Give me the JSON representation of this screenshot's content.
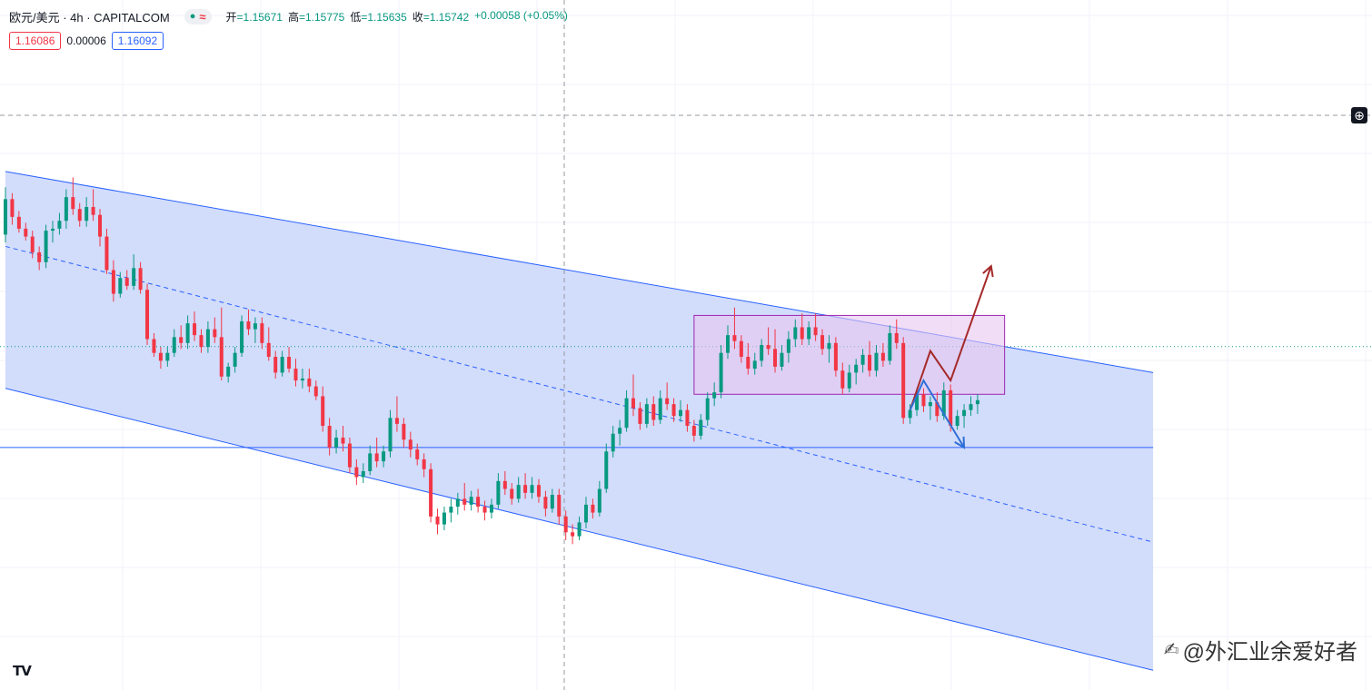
{
  "header": {
    "symbol_title": "欧元/美元 · 4h · CAPITALCOM",
    "status_wave": "≈",
    "ohlc": [
      {
        "label": "开",
        "value": "=1.15671"
      },
      {
        "label": "高",
        "value": "=1.15775"
      },
      {
        "label": "低",
        "value": "=1.15635"
      },
      {
        "label": "收",
        "value": "=1.15742"
      }
    ],
    "change": "+0.00058 (+0.05%)",
    "bid": "1.16086",
    "spread": "0.00006",
    "ask": "1.16092"
  },
  "watermark": "@外汇业余爱好者",
  "logo": "TV",
  "colors": {
    "up": "#089981",
    "down": "#f23645",
    "channel_fill": "#cdd8fb",
    "channel_line": "#2962ff",
    "range_box": "#e8c6f0",
    "range_border": "#9c27b0",
    "arrow_up": "#a52a2a",
    "arrow_down": "#2f6fd6"
  },
  "chart_data": {
    "type": "candlestick",
    "symbol": "欧元/美元",
    "timeframe": "4h",
    "current_close": 1.15742,
    "ylim": [
      1.14,
      1.175
    ],
    "grid": true,
    "channel": {
      "upper": {
        "start_index": 0,
        "start_price": 1.1663,
        "end_index": 170,
        "end_price": 1.1561
      },
      "lower": {
        "start_index": 0,
        "start_price": 1.1553,
        "end_index": 170,
        "end_price": 1.141
      },
      "mid": {
        "start_index": 0,
        "start_price": 1.1625,
        "end_index": 170,
        "end_price": 1.1475
      }
    },
    "support_level": 1.1523,
    "range_box": {
      "start_index": 102,
      "end_index": 148,
      "top": 1.159,
      "bottom": 1.155
    },
    "projections": [
      {
        "name": "bullish",
        "points": [
          [
            134,
            1.1542
          ],
          [
            137,
            1.1572
          ],
          [
            140,
            1.1557
          ],
          [
            146,
            1.1615
          ]
        ]
      },
      {
        "name": "bearish",
        "points": [
          [
            134,
            1.1542
          ],
          [
            136,
            1.1557
          ],
          [
            142,
            1.1523
          ]
        ]
      }
    ],
    "candles": [
      [
        1.1631,
        1.1655,
        1.1627,
        1.1649
      ],
      [
        1.1649,
        1.1652,
        1.1636,
        1.164
      ],
      [
        1.164,
        1.1643,
        1.1632,
        1.1634
      ],
      [
        1.1634,
        1.1637,
        1.1628,
        1.163
      ],
      [
        1.163,
        1.1633,
        1.1619,
        1.1622
      ],
      [
        1.1622,
        1.1625,
        1.1613,
        1.1617
      ],
      [
        1.1617,
        1.1636,
        1.1614,
        1.1633
      ],
      [
        1.1633,
        1.1638,
        1.1627,
        1.1634
      ],
      [
        1.1634,
        1.1642,
        1.1631,
        1.1638
      ],
      [
        1.1638,
        1.1654,
        1.1634,
        1.165
      ],
      [
        1.165,
        1.166,
        1.1641,
        1.1644
      ],
      [
        1.1644,
        1.1647,
        1.1635,
        1.1638
      ],
      [
        1.1638,
        1.165,
        1.1635,
        1.1645
      ],
      [
        1.1645,
        1.1654,
        1.1638,
        1.1641
      ],
      [
        1.1641,
        1.1644,
        1.1625,
        1.163
      ],
      [
        1.163,
        1.1634,
        1.1611,
        1.1613
      ],
      [
        1.1613,
        1.1618,
        1.1597,
        1.1601
      ],
      [
        1.1601,
        1.1612,
        1.1599,
        1.1609
      ],
      [
        1.1609,
        1.1613,
        1.1603,
        1.1605
      ],
      [
        1.1605,
        1.1621,
        1.1603,
        1.1614
      ],
      [
        1.1614,
        1.1617,
        1.1601,
        1.1603
      ],
      [
        1.1603,
        1.1606,
        1.1575,
        1.1578
      ],
      [
        1.1578,
        1.1581,
        1.1569,
        1.1571
      ],
      [
        1.1571,
        1.1574,
        1.1563,
        1.1567
      ],
      [
        1.1567,
        1.1574,
        1.1564,
        1.1571
      ],
      [
        1.1571,
        1.1583,
        1.1569,
        1.1579
      ],
      [
        1.1579,
        1.1585,
        1.1573,
        1.1576
      ],
      [
        1.1576,
        1.159,
        1.1573,
        1.1586
      ],
      [
        1.1586,
        1.1592,
        1.1577,
        1.158
      ],
      [
        1.158,
        1.1583,
        1.1571,
        1.1574
      ],
      [
        1.1574,
        1.1587,
        1.1571,
        1.1583
      ],
      [
        1.1583,
        1.1589,
        1.1576,
        1.1579
      ],
      [
        1.1579,
        1.1594,
        1.1557,
        1.1559
      ],
      [
        1.1559,
        1.1566,
        1.1556,
        1.1564
      ],
      [
        1.1564,
        1.1574,
        1.1561,
        1.1571
      ],
      [
        1.1571,
        1.159,
        1.1569,
        1.1587
      ],
      [
        1.1587,
        1.1593,
        1.158,
        1.1583
      ],
      [
        1.1583,
        1.1589,
        1.1576,
        1.1586
      ],
      [
        1.1586,
        1.1589,
        1.1573,
        1.1576
      ],
      [
        1.1576,
        1.1584,
        1.1567,
        1.1569
      ],
      [
        1.1569,
        1.1572,
        1.1558,
        1.1561
      ],
      [
        1.1561,
        1.1572,
        1.1559,
        1.1569
      ],
      [
        1.1569,
        1.1574,
        1.1561,
        1.1563
      ],
      [
        1.1563,
        1.1568,
        1.1554,
        1.1557
      ],
      [
        1.1557,
        1.1563,
        1.1553,
        1.1558
      ],
      [
        1.1558,
        1.1563,
        1.1551,
        1.1554
      ],
      [
        1.1554,
        1.1557,
        1.1547,
        1.1549
      ],
      [
        1.1549,
        1.1554,
        1.1531,
        1.1534
      ],
      [
        1.1534,
        1.1538,
        1.1519,
        1.1523
      ],
      [
        1.1523,
        1.1532,
        1.152,
        1.1528
      ],
      [
        1.1528,
        1.1534,
        1.1521,
        1.1525
      ],
      [
        1.1525,
        1.1528,
        1.151,
        1.1513
      ],
      [
        1.1513,
        1.1517,
        1.1504,
        1.1508
      ],
      [
        1.1508,
        1.1515,
        1.1505,
        1.1511
      ],
      [
        1.1511,
        1.1524,
        1.1509,
        1.152
      ],
      [
        1.152,
        1.1528,
        1.1513,
        1.1516
      ],
      [
        1.1516,
        1.1524,
        1.1513,
        1.1521
      ],
      [
        1.1521,
        1.1542,
        1.1518,
        1.1538
      ],
      [
        1.1538,
        1.1549,
        1.1531,
        1.1535
      ],
      [
        1.1535,
        1.1538,
        1.1523,
        1.1527
      ],
      [
        1.1527,
        1.1531,
        1.1518,
        1.1522
      ],
      [
        1.1522,
        1.1525,
        1.1514,
        1.1517
      ],
      [
        1.1517,
        1.152,
        1.1508,
        1.1512
      ],
      [
        1.1512,
        1.1515,
        1.1485,
        1.1488
      ],
      [
        1.1488,
        1.1492,
        1.1479,
        1.1484
      ],
      [
        1.1484,
        1.1493,
        1.1481,
        1.149
      ],
      [
        1.149,
        1.1497,
        1.1485,
        1.1493
      ],
      [
        1.1493,
        1.15,
        1.1489,
        1.1497
      ],
      [
        1.1497,
        1.1505,
        1.1491,
        1.1494
      ],
      [
        1.1494,
        1.1501,
        1.1491,
        1.1498
      ],
      [
        1.1498,
        1.1502,
        1.149,
        1.1493
      ],
      [
        1.1493,
        1.1496,
        1.1486,
        1.149
      ],
      [
        1.149,
        1.1497,
        1.1487,
        1.1494
      ],
      [
        1.1494,
        1.151,
        1.1492,
        1.1506
      ],
      [
        1.1506,
        1.1511,
        1.1499,
        1.1502
      ],
      [
        1.1502,
        1.1505,
        1.1494,
        1.1497
      ],
      [
        1.1497,
        1.1508,
        1.1495,
        1.1504
      ],
      [
        1.1504,
        1.151,
        1.1497,
        1.15
      ],
      [
        1.15,
        1.1508,
        1.1497,
        1.1504
      ],
      [
        1.1504,
        1.1507,
        1.1495,
        1.1498
      ],
      [
        1.1498,
        1.1501,
        1.1488,
        1.1492
      ],
      [
        1.1492,
        1.1502,
        1.149,
        1.1499
      ],
      [
        1.1499,
        1.1502,
        1.1484,
        1.1488
      ],
      [
        1.1488,
        1.1491,
        1.1476,
        1.148
      ],
      [
        1.148,
        1.1484,
        1.1474,
        1.1478
      ],
      [
        1.1478,
        1.1488,
        1.1476,
        1.1485
      ],
      [
        1.1485,
        1.1498,
        1.1482,
        1.1494
      ],
      [
        1.1494,
        1.1497,
        1.1487,
        1.149
      ],
      [
        1.149,
        1.1506,
        1.1488,
        1.1502
      ],
      [
        1.1502,
        1.1525,
        1.15,
        1.1521
      ],
      [
        1.1521,
        1.1534,
        1.1518,
        1.153
      ],
      [
        1.153,
        1.1537,
        1.1524,
        1.1533
      ],
      [
        1.1533,
        1.1552,
        1.1531,
        1.1548
      ],
      [
        1.1548,
        1.156,
        1.1539,
        1.1543
      ],
      [
        1.1543,
        1.1546,
        1.1532,
        1.1535
      ],
      [
        1.1535,
        1.1548,
        1.1533,
        1.1545
      ],
      [
        1.1545,
        1.1549,
        1.1534,
        1.1537
      ],
      [
        1.1537,
        1.1552,
        1.1535,
        1.1548
      ],
      [
        1.1548,
        1.1556,
        1.1542,
        1.1545
      ],
      [
        1.1545,
        1.1548,
        1.1536,
        1.1539
      ],
      [
        1.1539,
        1.1547,
        1.1536,
        1.1542
      ],
      [
        1.1542,
        1.1545,
        1.1531,
        1.1534
      ],
      [
        1.1534,
        1.1537,
        1.1526,
        1.1529
      ],
      [
        1.1529,
        1.154,
        1.1527,
        1.1537
      ],
      [
        1.1537,
        1.1551,
        1.1534,
        1.1548
      ],
      [
        1.1548,
        1.1556,
        1.1544,
        1.1551
      ],
      [
        1.1551,
        1.1575,
        1.1548,
        1.1571
      ],
      [
        1.1571,
        1.1585,
        1.1568,
        1.158
      ],
      [
        1.158,
        1.1594,
        1.1573,
        1.1577
      ],
      [
        1.1577,
        1.158,
        1.1566,
        1.1569
      ],
      [
        1.1569,
        1.1576,
        1.156,
        1.1563
      ],
      [
        1.1563,
        1.1571,
        1.156,
        1.1567
      ],
      [
        1.1567,
        1.1578,
        1.1564,
        1.1575
      ],
      [
        1.1575,
        1.1584,
        1.157,
        1.1573
      ],
      [
        1.1573,
        1.1583,
        1.1561,
        1.1564
      ],
      [
        1.1564,
        1.1575,
        1.1562,
        1.1571
      ],
      [
        1.1571,
        1.1582,
        1.1566,
        1.1578
      ],
      [
        1.1578,
        1.1588,
        1.1574,
        1.1584
      ],
      [
        1.1584,
        1.1591,
        1.1575,
        1.1578
      ],
      [
        1.1578,
        1.1587,
        1.1575,
        1.1584
      ],
      [
        1.1584,
        1.1591,
        1.1577,
        1.158
      ],
      [
        1.158,
        1.1583,
        1.157,
        1.1573
      ],
      [
        1.1573,
        1.158,
        1.1566,
        1.1576
      ],
      [
        1.1576,
        1.1579,
        1.1559,
        1.1562
      ],
      [
        1.1562,
        1.1566,
        1.155,
        1.1553
      ],
      [
        1.1553,
        1.1565,
        1.1551,
        1.1561
      ],
      [
        1.1561,
        1.1568,
        1.1555,
        1.1565
      ],
      [
        1.1565,
        1.1573,
        1.1561,
        1.157
      ],
      [
        1.157,
        1.1577,
        1.1559,
        1.1562
      ],
      [
        1.1562,
        1.1575,
        1.1559,
        1.1571
      ],
      [
        1.1571,
        1.1576,
        1.1564,
        1.1567
      ],
      [
        1.1567,
        1.1585,
        1.1565,
        1.1581
      ],
      [
        1.1581,
        1.1588,
        1.1573,
        1.1576
      ],
      [
        1.1576,
        1.1579,
        1.1535,
        1.1538
      ],
      [
        1.1538,
        1.1545,
        1.1535,
        1.1542
      ],
      [
        1.1542,
        1.1553,
        1.1539,
        1.155
      ],
      [
        1.155,
        1.1553,
        1.1541,
        1.1544
      ],
      [
        1.1544,
        1.1549,
        1.1537,
        1.1546
      ],
      [
        1.1546,
        1.1551,
        1.1536,
        1.1539
      ],
      [
        1.1539,
        1.1556,
        1.1537,
        1.1552
      ],
      [
        1.1552,
        1.1555,
        1.1531,
        1.1534
      ],
      [
        1.1534,
        1.1542,
        1.1532,
        1.1539
      ],
      [
        1.1539,
        1.1545,
        1.1533,
        1.1542
      ],
      [
        1.1542,
        1.1549,
        1.1539,
        1.1545
      ],
      [
        1.1545,
        1.155,
        1.154,
        1.1547
      ]
    ]
  }
}
